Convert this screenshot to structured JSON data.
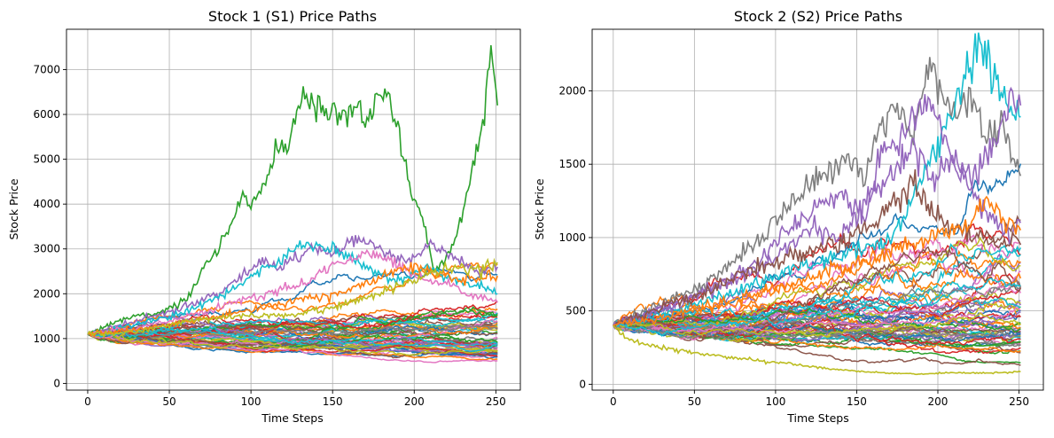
{
  "chart_data": [
    {
      "type": "line",
      "title": "Stock 1 (S1) Price Paths",
      "xlabel": "Time Steps",
      "ylabel": "Stock Price",
      "xlim": [
        -13,
        265
      ],
      "ylim": [
        -150,
        7900
      ],
      "xticks": [
        0,
        50,
        100,
        150,
        200,
        250
      ],
      "yticks": [
        0,
        1000,
        2000,
        3000,
        4000,
        5000,
        6000,
        7000
      ],
      "grid": true,
      "n_steps": 252,
      "start_value": 1100,
      "series_count": 60,
      "highlight_series": [
        {
          "color": "#2ca02c",
          "values": [
            [
              0,
              1100
            ],
            [
              10,
              1250
            ],
            [
              25,
              1450
            ],
            [
              40,
              1550
            ],
            [
              55,
              1750
            ],
            [
              63,
              1950
            ],
            [
              70,
              2600
            ],
            [
              78,
              2850
            ],
            [
              85,
              3300
            ],
            [
              95,
              4200
            ],
            [
              100,
              4000
            ],
            [
              110,
              4600
            ],
            [
              115,
              5300
            ],
            [
              122,
              5300
            ],
            [
              130,
              6200
            ],
            [
              138,
              6400
            ],
            [
              145,
              5900
            ],
            [
              150,
              6100
            ],
            [
              158,
              6000
            ],
            [
              165,
              6200
            ],
            [
              172,
              5800
            ],
            [
              178,
              6550
            ],
            [
              185,
              6300
            ],
            [
              190,
              5700
            ],
            [
              195,
              4800
            ],
            [
              200,
              4200
            ],
            [
              207,
              3500
            ],
            [
              212,
              2500
            ],
            [
              218,
              2700
            ],
            [
              225,
              3200
            ],
            [
              232,
              4200
            ],
            [
              238,
              5200
            ],
            [
              243,
              6000
            ],
            [
              247,
              7550
            ],
            [
              250,
              6500
            ],
            [
              251,
              6200
            ]
          ]
        },
        {
          "color": "#9467bd",
          "values": [
            [
              0,
              1100
            ],
            [
              30,
              1400
            ],
            [
              60,
              1700
            ],
            [
              80,
              2000
            ],
            [
              95,
              2400
            ],
            [
              105,
              2700
            ],
            [
              120,
              2600
            ],
            [
              135,
              3000
            ],
            [
              150,
              2900
            ],
            [
              165,
              3300
            ],
            [
              180,
              3000
            ],
            [
              195,
              2700
            ],
            [
              210,
              3100
            ],
            [
              225,
              2800
            ],
            [
              240,
              2500
            ],
            [
              251,
              2600
            ]
          ]
        },
        {
          "color": "#17becf",
          "values": [
            [
              0,
              1100
            ],
            [
              35,
              1350
            ],
            [
              60,
              1600
            ],
            [
              85,
              2000
            ],
            [
              105,
              2500
            ],
            [
              120,
              2800
            ],
            [
              135,
              3100
            ],
            [
              148,
              3000
            ],
            [
              160,
              2800
            ],
            [
              175,
              2500
            ],
            [
              190,
              2300
            ],
            [
              205,
              2600
            ],
            [
              220,
              2400
            ],
            [
              235,
              2200
            ],
            [
              251,
              2000
            ]
          ]
        },
        {
          "color": "#e377c2",
          "values": [
            [
              0,
              1100
            ],
            [
              40,
              1300
            ],
            [
              70,
              1600
            ],
            [
              100,
              1900
            ],
            [
              130,
              2200
            ],
            [
              150,
              2600
            ],
            [
              170,
              2900
            ],
            [
              185,
              2800
            ],
            [
              200,
              2400
            ],
            [
              220,
              2200
            ],
            [
              240,
              1900
            ],
            [
              251,
              1800
            ]
          ]
        },
        {
          "color": "#ff7f0e",
          "values": [
            [
              0,
              1100
            ],
            [
              40,
              1250
            ],
            [
              80,
              1500
            ],
            [
              110,
              1700
            ],
            [
              140,
              1900
            ],
            [
              170,
              2200
            ],
            [
              195,
              2600
            ],
            [
              210,
              2500
            ],
            [
              230,
              2300
            ],
            [
              251,
              2400
            ]
          ]
        },
        {
          "color": "#bcbd22",
          "values": [
            [
              0,
              1100
            ],
            [
              30,
              1150
            ],
            [
              60,
              1400
            ],
            [
              90,
              1500
            ],
            [
              120,
              1500
            ],
            [
              150,
              1700
            ],
            [
              180,
              2000
            ],
            [
              200,
              2300
            ],
            [
              220,
              2600
            ],
            [
              240,
              2500
            ],
            [
              251,
              2700
            ]
          ]
        }
      ]
    },
    {
      "type": "line",
      "title": "Stock 2 (S2) Price Paths",
      "xlabel": "Time Steps",
      "ylabel": "Stock Price",
      "xlim": [
        -13,
        265
      ],
      "ylim": [
        -40,
        2420
      ],
      "xticks": [
        0,
        50,
        100,
        150,
        200,
        250
      ],
      "yticks": [
        0,
        500,
        1000,
        1500,
        2000
      ],
      "grid": true,
      "n_steps": 252,
      "start_value": 400,
      "series_count": 60,
      "highlight_series": [
        {
          "color": "#7f7f7f",
          "values": [
            [
              0,
              400
            ],
            [
              30,
              550
            ],
            [
              60,
              700
            ],
            [
              85,
              950
            ],
            [
              100,
              1100
            ],
            [
              115,
              1300
            ],
            [
              130,
              1450
            ],
            [
              145,
              1550
            ],
            [
              155,
              1400
            ],
            [
              165,
              1750
            ],
            [
              175,
              1900
            ],
            [
              185,
              1700
            ],
            [
              195,
              2200
            ],
            [
              203,
              1950
            ],
            [
              210,
              1850
            ],
            [
              220,
              1950
            ],
            [
              230,
              1700
            ],
            [
              240,
              1800
            ],
            [
              245,
              1600
            ],
            [
              251,
              1420
            ]
          ]
        },
        {
          "color": "#17becf",
          "values": [
            [
              0,
              400
            ],
            [
              40,
              500
            ],
            [
              80,
              650
            ],
            [
              110,
              800
            ],
            [
              130,
              850
            ],
            [
              150,
              900
            ],
            [
              170,
              950
            ],
            [
              180,
              1150
            ],
            [
              195,
              1550
            ],
            [
              205,
              1750
            ],
            [
              215,
              2050
            ],
            [
              225,
              2320
            ],
            [
              232,
              2200
            ],
            [
              240,
              1950
            ],
            [
              246,
              1800
            ],
            [
              251,
              1820
            ]
          ]
        },
        {
          "color": "#9467bd",
          "values": [
            [
              0,
              400
            ],
            [
              40,
              550
            ],
            [
              70,
              700
            ],
            [
              95,
              900
            ],
            [
              110,
              1050
            ],
            [
              125,
              1200
            ],
            [
              140,
              1300
            ],
            [
              155,
              1150
            ],
            [
              165,
              1550
            ],
            [
              175,
              1600
            ],
            [
              190,
              1950
            ],
            [
              200,
              1800
            ],
            [
              210,
              1500
            ],
            [
              220,
              1400
            ],
            [
              230,
              1500
            ],
            [
              240,
              1800
            ],
            [
              245,
              1950
            ],
            [
              251,
              1900
            ]
          ]
        },
        {
          "color": "#9467bd",
          "values": [
            [
              0,
              400
            ],
            [
              50,
              600
            ],
            [
              90,
              800
            ],
            [
              120,
              1050
            ],
            [
              140,
              1000
            ],
            [
              160,
              1300
            ],
            [
              175,
              1500
            ],
            [
              185,
              1650
            ],
            [
              195,
              1400
            ],
            [
              210,
              1500
            ],
            [
              225,
              1250
            ],
            [
              235,
              1100
            ],
            [
              245,
              1000
            ],
            [
              251,
              1100
            ]
          ]
        },
        {
          "color": "#8c564b",
          "values": [
            [
              0,
              400
            ],
            [
              50,
              600
            ],
            [
              90,
              800
            ],
            [
              120,
              900
            ],
            [
              140,
              950
            ],
            [
              160,
              1100
            ],
            [
              175,
              1250
            ],
            [
              185,
              1350
            ],
            [
              195,
              1200
            ],
            [
              210,
              1050
            ],
            [
              230,
              1000
            ],
            [
              251,
              950
            ]
          ]
        },
        {
          "color": "#ff7f0e",
          "values": [
            [
              0,
              400
            ],
            [
              50,
              500
            ],
            [
              100,
              650
            ],
            [
              140,
              800
            ],
            [
              170,
              900
            ],
            [
              200,
              1000
            ],
            [
              220,
              1100
            ],
            [
              230,
              1250
            ],
            [
              240,
              1150
            ],
            [
              251,
              1050
            ]
          ]
        },
        {
          "color": "#bcbd22",
          "values": [
            [
              0,
              400
            ],
            [
              10,
              300
            ],
            [
              30,
              250
            ],
            [
              60,
              200
            ],
            [
              90,
              160
            ],
            [
              110,
              140
            ],
            [
              130,
              110
            ],
            [
              150,
              90
            ],
            [
              170,
              75
            ],
            [
              190,
              70
            ],
            [
              210,
              80
            ],
            [
              230,
              75
            ],
            [
              251,
              85
            ]
          ]
        }
      ]
    }
  ],
  "palette": [
    "#1f77b4",
    "#ff7f0e",
    "#2ca02c",
    "#d62728",
    "#9467bd",
    "#8c564b",
    "#e377c2",
    "#7f7f7f",
    "#bcbd22",
    "#17becf"
  ]
}
